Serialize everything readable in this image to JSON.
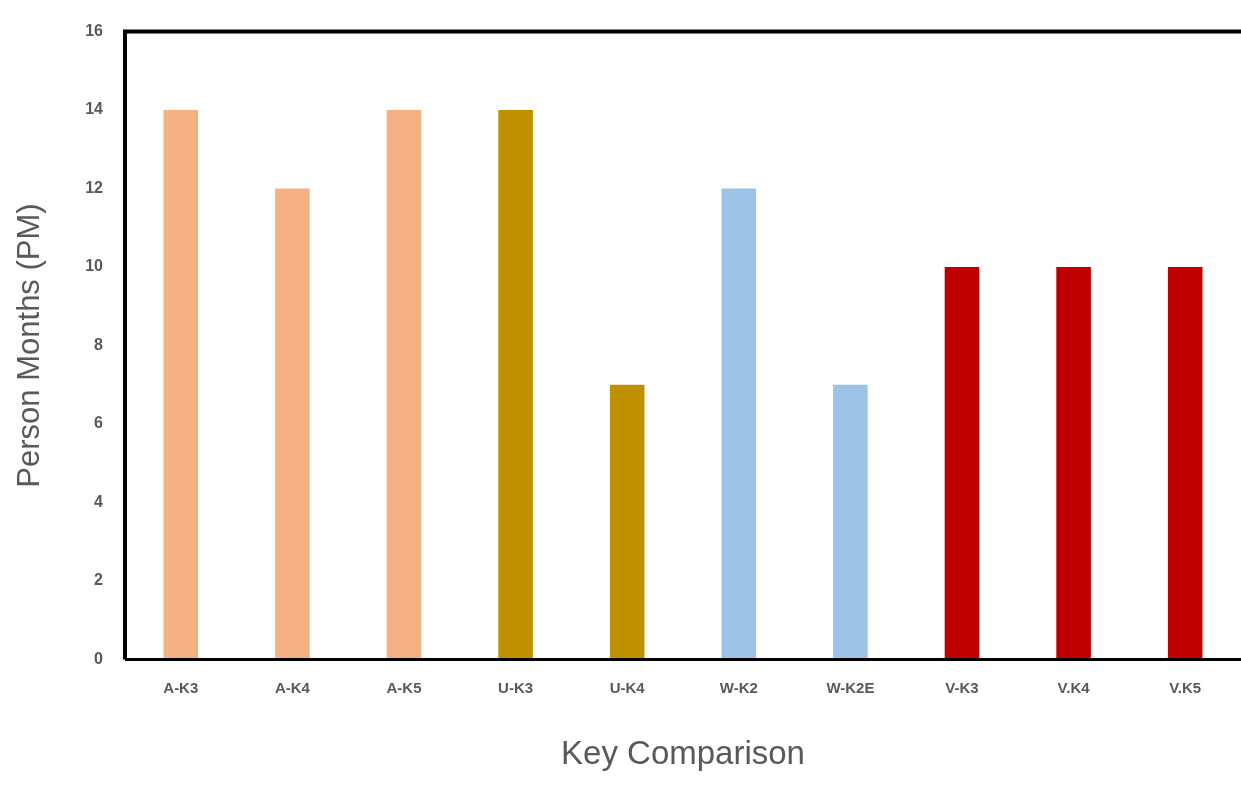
{
  "chart_data": {
    "type": "bar",
    "xlabel": "Key Comparison",
    "ylabel": "Person Months (PM)",
    "categories": [
      "A-K3",
      "A-K4",
      "A-K5",
      "U-K3",
      "U-K4",
      "W-K2",
      "W-K2E",
      "V-K3",
      "V.K4",
      "V.K5"
    ],
    "values": [
      14,
      12,
      14,
      14,
      7,
      12,
      7,
      10,
      10,
      10
    ],
    "colors": [
      "#f4b183",
      "#f4b183",
      "#f4b183",
      "#bf9000",
      "#bf9000",
      "#9dc3e6",
      "#9dc3e6",
      "#c00000",
      "#c00000",
      "#c00000"
    ],
    "ylim": [
      0,
      16
    ],
    "yticks": [
      0,
      2,
      4,
      6,
      8,
      10,
      12,
      14,
      16
    ],
    "grid": false,
    "legend": false
  }
}
